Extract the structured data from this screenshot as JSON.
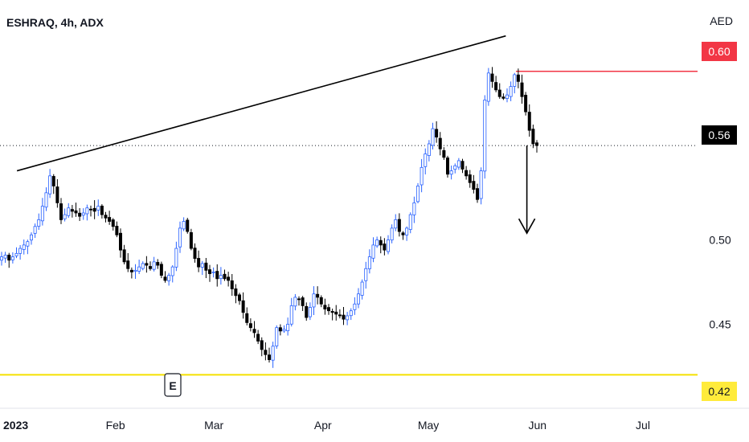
{
  "header": {
    "title": "ESHRAQ, 4h, ADX",
    "currency": "AED"
  },
  "event_marker": {
    "label": "E"
  },
  "colors": {
    "bull": "#2962ff",
    "bear": "#000000",
    "resistance": "#f23645",
    "support": "#f5e100",
    "badge_red": "#f23645",
    "badge_yellow": "#ffeb3b",
    "badge_black": "#000000",
    "trendline": "#000000"
  },
  "chart_data": {
    "type": "candlestick",
    "symbol": "ESHRAQ",
    "interval": "4h",
    "exchange": "ADX",
    "y_axis": {
      "ticks": [
        0.45,
        0.5
      ],
      "ylim": [
        0.404,
        0.628
      ]
    },
    "x_axis": {
      "ticks": [
        "2023",
        "Feb",
        "Mar",
        "Apr",
        "May",
        "Jun",
        "Jul"
      ]
    },
    "last_price": "0.56",
    "levels": [
      {
        "name": "resistance",
        "value": 0.6,
        "label": "0.60",
        "color": "#f23645"
      },
      {
        "name": "support",
        "value": 0.42,
        "label": "0.42",
        "color": "#f5e100"
      }
    ],
    "trendline": {
      "from": {
        "date": "2023-01-04",
        "price": 0.541
      },
      "to": {
        "date": "2023-05-23",
        "price": 0.621
      }
    },
    "projection": {
      "from": {
        "date": "2023-05-29",
        "price": 0.556
      },
      "to": {
        "date": "2023-05-29",
        "price": 0.504
      }
    },
    "closes": [
      0.49,
      0.491,
      0.488,
      0.49,
      0.492,
      0.495,
      0.497,
      0.499,
      0.503,
      0.508,
      0.512,
      0.52,
      0.528,
      0.538,
      0.532,
      0.522,
      0.512,
      0.515,
      0.519,
      0.517,
      0.516,
      0.514,
      0.516,
      0.519,
      0.518,
      0.517,
      0.52,
      0.515,
      0.513,
      0.511,
      0.508,
      0.503,
      0.494,
      0.487,
      0.483,
      0.481,
      0.482,
      0.484,
      0.486,
      0.485,
      0.483,
      0.487,
      0.485,
      0.479,
      0.476,
      0.479,
      0.484,
      0.495,
      0.507,
      0.511,
      0.505,
      0.495,
      0.489,
      0.484,
      0.486,
      0.482,
      0.48,
      0.481,
      0.477,
      0.479,
      0.477,
      0.476,
      0.471,
      0.467,
      0.464,
      0.457,
      0.451,
      0.448,
      0.445,
      0.44,
      0.435,
      0.432,
      0.429,
      0.437,
      0.448,
      0.446,
      0.447,
      0.45,
      0.461,
      0.466,
      0.465,
      0.461,
      0.454,
      0.46,
      0.468,
      0.466,
      0.462,
      0.459,
      0.458,
      0.457,
      0.456,
      0.455,
      0.453,
      0.455,
      0.458,
      0.462,
      0.468,
      0.475,
      0.483,
      0.49,
      0.497,
      0.5,
      0.497,
      0.494,
      0.5,
      0.507,
      0.512,
      0.505,
      0.503,
      0.507,
      0.515,
      0.522,
      0.532,
      0.543,
      0.551,
      0.557,
      0.566,
      0.561,
      0.554,
      0.549,
      0.539,
      0.541,
      0.544,
      0.547,
      0.542,
      0.538,
      0.534,
      0.53,
      0.524,
      0.541,
      0.583,
      0.599,
      0.594,
      0.589,
      0.585,
      0.584,
      0.586,
      0.591,
      0.598,
      0.594,
      0.585,
      0.576,
      0.565,
      0.557,
      0.556
    ]
  }
}
